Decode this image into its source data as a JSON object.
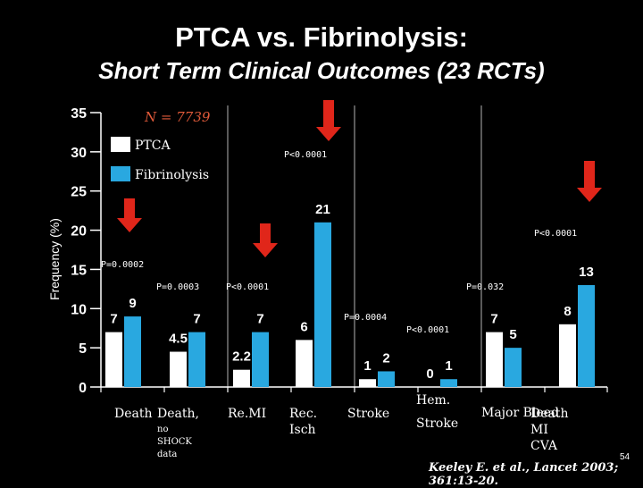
{
  "title": "PTCA vs. Fibrinolysis:",
  "subtitle": "Short Term Clinical Outcomes (23 RCTs)",
  "n_label": "N = 7739",
  "citation": "Keeley E. et al., Lancet 2003; 361:13-20.",
  "page_number": "54",
  "colors": {
    "ptca": "#ffffff",
    "fibrinolysis": "#29a8e0",
    "arrow": "#e0261a",
    "background": "#000000"
  },
  "chart_data": {
    "type": "bar",
    "ylabel": "Frequency (%)",
    "ylim": [
      0,
      35
    ],
    "yticks": [
      "0",
      "5",
      "10",
      "15",
      "20",
      "25",
      "30",
      "35"
    ],
    "legend": {
      "placement": "top-left",
      "entries": [
        "PTCA",
        "Fibrinolysis"
      ]
    },
    "categories": [
      {
        "lines": [
          "Death"
        ]
      },
      {
        "lines": [
          "Death,",
          "no",
          "SHOCK",
          "data"
        ]
      },
      {
        "lines": [
          "Re.MI"
        ]
      },
      {
        "lines": [
          "Rec.",
          "Isch"
        ]
      },
      {
        "lines": [
          "Stroke"
        ]
      },
      {
        "lines": [
          "Hem.",
          "Stroke"
        ]
      },
      {
        "lines": [
          "Major Bleed"
        ]
      },
      {
        "lines": [
          "Death",
          "MI",
          "CVA"
        ]
      }
    ],
    "series": [
      {
        "name": "PTCA",
        "values": [
          7,
          4.5,
          2.2,
          6,
          1,
          0,
          7,
          8
        ],
        "labels": [
          "7",
          "4.5",
          "2.2",
          "6",
          "1",
          "0",
          "7",
          "8"
        ]
      },
      {
        "name": "Fibrinolysis",
        "values": [
          9,
          7,
          7,
          21,
          2,
          1,
          5,
          13
        ],
        "labels": [
          "9",
          "7",
          "7",
          "21",
          "2",
          "1",
          "5",
          "13"
        ]
      }
    ],
    "p_values": [
      "P=0.0002",
      "P=0.0003",
      "P<0.0001",
      "P<0.0001",
      "P=0.0004",
      "P<0.0001",
      "P=0.032",
      "P<0.0001"
    ],
    "highlighted_categories": [
      "Death",
      "Re.MI",
      "Rec. Isch",
      "Death MI CVA"
    ]
  }
}
